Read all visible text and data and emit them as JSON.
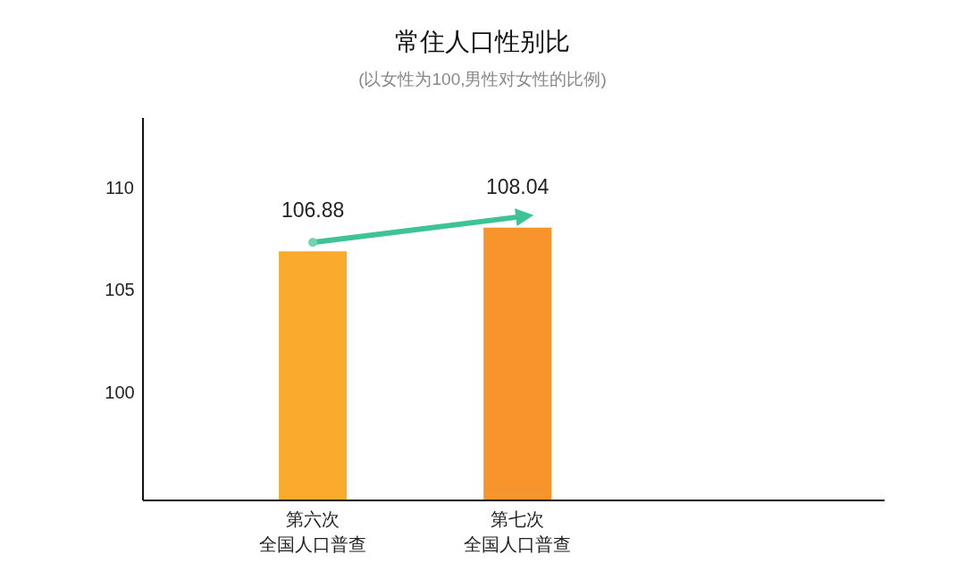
{
  "chart_data": {
    "type": "bar",
    "title": "常住人口性别比",
    "subtitle": "(以女性为100,男性对女性的比例)",
    "categories": [
      "第六次全国人口普查",
      "第七次全国人口普查"
    ],
    "values": [
      106.88,
      108.04
    ],
    "colors": [
      "#fbab2b",
      "#f7952c"
    ],
    "ylim": [
      94.7,
      113.4
    ],
    "yticks": [
      100,
      105,
      110
    ],
    "data_labels": true,
    "grid": false
  }
}
